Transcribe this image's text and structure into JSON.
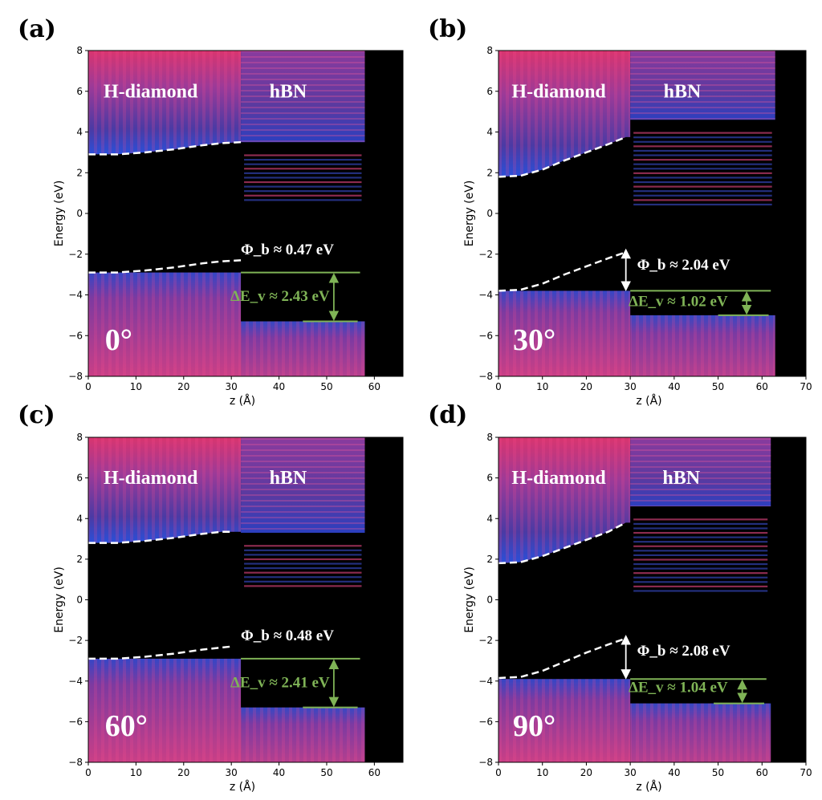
{
  "chart_data": [
    {
      "panel": "(a)",
      "type": "heatmap",
      "angle": "0°",
      "regions": [
        "H-diamond",
        "hBN"
      ],
      "xlabel": "z (Å)",
      "ylabel": "Energy (eV)",
      "xlim": [
        0,
        66
      ],
      "ylim": [
        -8,
        8
      ],
      "xticks": [
        0,
        10,
        20,
        30,
        40,
        50,
        60
      ],
      "yticks": [
        -8,
        -6,
        -4,
        -2,
        0,
        2,
        4,
        6,
        8
      ],
      "interface_z": 32,
      "hbn_end_z": 58,
      "conduction_band_edge": {
        "z": [
          0,
          6,
          12,
          18,
          24,
          28,
          32
        ],
        "energy": [
          2.9,
          2.9,
          3.0,
          3.15,
          3.35,
          3.45,
          3.5
        ]
      },
      "valence_band_edge": {
        "z": [
          0,
          6,
          12,
          18,
          24,
          28,
          32
        ],
        "energy": [
          -2.9,
          -2.9,
          -2.8,
          -2.65,
          -2.45,
          -2.35,
          -2.3
        ]
      },
      "hbn_conduction_onset": 3.5,
      "diamond_valence_top": -2.9,
      "hbn_valence_top": -5.3,
      "phi_b": "Φ_b ≈ 0.47 eV",
      "delta_ev": "ΔE_v ≈ 2.43 eV"
    },
    {
      "panel": "(b)",
      "type": "heatmap",
      "angle": "30°",
      "regions": [
        "H-diamond",
        "hBN"
      ],
      "xlabel": "z (Å)",
      "ylabel": "Energy (eV)",
      "xlim": [
        0,
        70
      ],
      "ylim": [
        -8,
        8
      ],
      "xticks": [
        0,
        10,
        20,
        30,
        40,
        50,
        60,
        70
      ],
      "yticks": [
        -8,
        -6,
        -4,
        -2,
        0,
        2,
        4,
        6,
        8
      ],
      "interface_z": 30,
      "hbn_end_z": 63,
      "conduction_band_edge": {
        "z": [
          0,
          5,
          10,
          15,
          20,
          25,
          29
        ],
        "energy": [
          1.8,
          1.85,
          2.15,
          2.6,
          3.0,
          3.4,
          3.75
        ]
      },
      "valence_band_edge": {
        "z": [
          0,
          5,
          10,
          15,
          20,
          25,
          29
        ],
        "energy": [
          -3.8,
          -3.75,
          -3.45,
          -3.0,
          -2.6,
          -2.2,
          -1.9
        ]
      },
      "hbn_conduction_onset": 4.6,
      "diamond_valence_top": -3.8,
      "hbn_valence_top": -5.0,
      "phi_b": "Φ_b ≈ 2.04 eV",
      "delta_ev": "ΔE_v ≈ 1.02 eV"
    },
    {
      "panel": "(c)",
      "type": "heatmap",
      "angle": "60°",
      "regions": [
        "H-diamond",
        "hBN"
      ],
      "xlabel": "z (Å)",
      "ylabel": "Energy (eV)",
      "xlim": [
        0,
        66
      ],
      "ylim": [
        -8,
        8
      ],
      "xticks": [
        0,
        10,
        20,
        30,
        40,
        50,
        60
      ],
      "yticks": [
        -8,
        -6,
        -4,
        -2,
        0,
        2,
        4,
        6,
        8
      ],
      "interface_z": 32,
      "hbn_end_z": 58,
      "conduction_band_edge": {
        "z": [
          0,
          6,
          12,
          18,
          24,
          28,
          30
        ],
        "energy": [
          2.8,
          2.8,
          2.9,
          3.05,
          3.25,
          3.35,
          3.35
        ]
      },
      "valence_band_edge": {
        "z": [
          0,
          6,
          12,
          18,
          24,
          28,
          30
        ],
        "energy": [
          -2.9,
          -2.9,
          -2.8,
          -2.65,
          -2.45,
          -2.35,
          -2.3
        ]
      },
      "hbn_conduction_onset": 3.3,
      "diamond_valence_top": -2.9,
      "hbn_valence_top": -5.3,
      "phi_b": "Φ_b ≈ 0.48 eV",
      "delta_ev": "ΔE_v ≈ 2.41 eV"
    },
    {
      "panel": "(d)",
      "type": "heatmap",
      "angle": "90°",
      "regions": [
        "H-diamond",
        "hBN"
      ],
      "xlabel": "z (Å)",
      "ylabel": "Energy (eV)",
      "xlim": [
        0,
        70
      ],
      "ylim": [
        -8,
        8
      ],
      "xticks": [
        0,
        10,
        20,
        30,
        40,
        50,
        60,
        70
      ],
      "yticks": [
        -8,
        -6,
        -4,
        -2,
        0,
        2,
        4,
        6,
        8
      ],
      "interface_z": 30,
      "hbn_end_z": 62,
      "conduction_band_edge": {
        "z": [
          0,
          5,
          10,
          15,
          20,
          25,
          29
        ],
        "energy": [
          1.8,
          1.85,
          2.15,
          2.55,
          2.95,
          3.35,
          3.8
        ]
      },
      "valence_band_edge": {
        "z": [
          0,
          5,
          10,
          15,
          20,
          25,
          29
        ],
        "energy": [
          -3.85,
          -3.8,
          -3.5,
          -3.05,
          -2.6,
          -2.2,
          -1.9
        ]
      },
      "hbn_conduction_onset": 4.6,
      "diamond_valence_top": -3.9,
      "hbn_valence_top": -5.1,
      "phi_b": "Φ_b ≈ 2.08 eV",
      "delta_ev": "ΔE_v ≈ 1.04 eV"
    }
  ],
  "colors": {
    "background": "#000000",
    "heat_base": "#3a2f8c",
    "heat_mid": "#8a3a9c",
    "heat_high": "#ff4f8f",
    "edge_blue": "#2a4fd8",
    "annotation_green": "#7fb356",
    "dashed_line": "#ffffff"
  }
}
